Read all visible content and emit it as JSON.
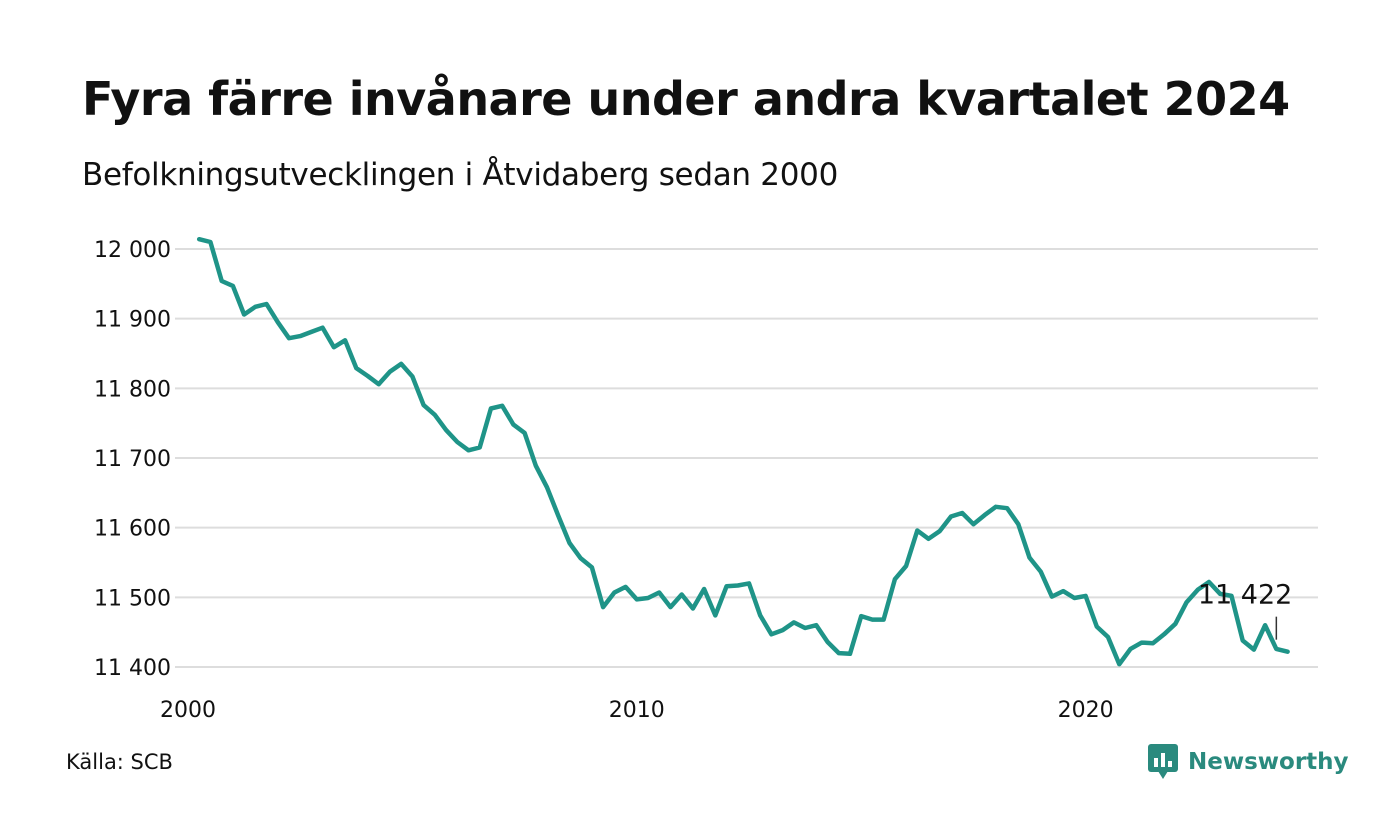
{
  "header": {
    "title": "Fyra färre invånare under andra kvartalet 2024",
    "subtitle": "Befolkningsutvecklingen i Åtvidaberg sedan 2000"
  },
  "footer": {
    "source": "Källa: SCB",
    "brand": "Newsworthy",
    "brand_icon": "bar-chart-speech-bubble-icon"
  },
  "colors": {
    "line": "#1f9488",
    "grid": "#dddddd",
    "text": "#111111",
    "brand": "#2a8a7e"
  },
  "chart_data": {
    "type": "line",
    "title": "Fyra färre invånare under andra kvartalet 2024",
    "subtitle": "Befolkningsutvecklingen i Åtvidaberg sedan 2000",
    "x_ticks": [
      2000,
      2010,
      2020
    ],
    "y_ticks": [
      11400,
      11500,
      11600,
      11700,
      11800,
      11900,
      12000
    ],
    "y_tick_labels": [
      "11 400",
      "11 500",
      "11 600",
      "11 700",
      "11 800",
      "11 900",
      "12 000"
    ],
    "xlim": [
      2000,
      2025
    ],
    "ylim": [
      11400,
      12000
    ],
    "grid": "horizontal",
    "annotation": {
      "text": "11 422",
      "x": 2024.25,
      "y": 11422
    },
    "series": [
      {
        "values": [
          {
            "x": 2000.25,
            "y": 12014
          },
          {
            "x": 2000.5,
            "y": 12010
          },
          {
            "x": 2000.75,
            "y": 11954
          },
          {
            "x": 2001.0,
            "y": 11947
          },
          {
            "x": 2001.25,
            "y": 11906
          },
          {
            "x": 2001.5,
            "y": 11917
          },
          {
            "x": 2001.75,
            "y": 11921
          },
          {
            "x": 2002.0,
            "y": 11895
          },
          {
            "x": 2002.25,
            "y": 11872
          },
          {
            "x": 2002.5,
            "y": 11875
          },
          {
            "x": 2002.75,
            "y": 11881
          },
          {
            "x": 2003.0,
            "y": 11887
          },
          {
            "x": 2003.25,
            "y": 11859
          },
          {
            "x": 2003.5,
            "y": 11869
          },
          {
            "x": 2003.75,
            "y": 11829
          },
          {
            "x": 2004.0,
            "y": 11818
          },
          {
            "x": 2004.25,
            "y": 11806
          },
          {
            "x": 2004.5,
            "y": 11824
          },
          {
            "x": 2004.75,
            "y": 11835
          },
          {
            "x": 2005.0,
            "y": 11817
          },
          {
            "x": 2005.25,
            "y": 11776
          },
          {
            "x": 2005.5,
            "y": 11762
          },
          {
            "x": 2005.75,
            "y": 11740
          },
          {
            "x": 2006.0,
            "y": 11723
          },
          {
            "x": 2006.25,
            "y": 11711
          },
          {
            "x": 2006.5,
            "y": 11715
          },
          {
            "x": 2006.75,
            "y": 11771
          },
          {
            "x": 2007.0,
            "y": 11775
          },
          {
            "x": 2007.25,
            "y": 11748
          },
          {
            "x": 2007.5,
            "y": 11736
          },
          {
            "x": 2007.75,
            "y": 11689
          },
          {
            "x": 2008.0,
            "y": 11658
          },
          {
            "x": 2008.25,
            "y": 11617
          },
          {
            "x": 2008.5,
            "y": 11578
          },
          {
            "x": 2008.75,
            "y": 11556
          },
          {
            "x": 2009.0,
            "y": 11543
          },
          {
            "x": 2009.25,
            "y": 11486
          },
          {
            "x": 2009.5,
            "y": 11507
          },
          {
            "x": 2009.75,
            "y": 11515
          },
          {
            "x": 2010.0,
            "y": 11497
          },
          {
            "x": 2010.25,
            "y": 11499
          },
          {
            "x": 2010.5,
            "y": 11507
          },
          {
            "x": 2010.75,
            "y": 11486
          },
          {
            "x": 2011.0,
            "y": 11504
          },
          {
            "x": 2011.25,
            "y": 11484
          },
          {
            "x": 2011.5,
            "y": 11512
          },
          {
            "x": 2011.75,
            "y": 11474
          },
          {
            "x": 2012.0,
            "y": 11516
          },
          {
            "x": 2012.25,
            "y": 11517
          },
          {
            "x": 2012.5,
            "y": 11520
          },
          {
            "x": 2012.75,
            "y": 11474
          },
          {
            "x": 2013.0,
            "y": 11447
          },
          {
            "x": 2013.25,
            "y": 11453
          },
          {
            "x": 2013.5,
            "y": 11464
          },
          {
            "x": 2013.75,
            "y": 11456
          },
          {
            "x": 2014.0,
            "y": 11460
          },
          {
            "x": 2014.25,
            "y": 11436
          },
          {
            "x": 2014.5,
            "y": 11420
          },
          {
            "x": 2014.75,
            "y": 11419
          },
          {
            "x": 2015.0,
            "y": 11473
          },
          {
            "x": 2015.25,
            "y": 11468
          },
          {
            "x": 2015.5,
            "y": 11468
          },
          {
            "x": 2015.75,
            "y": 11526
          },
          {
            "x": 2016.0,
            "y": 11545
          },
          {
            "x": 2016.25,
            "y": 11596
          },
          {
            "x": 2016.5,
            "y": 11584
          },
          {
            "x": 2016.75,
            "y": 11595
          },
          {
            "x": 2017.0,
            "y": 11616
          },
          {
            "x": 2017.25,
            "y": 11621
          },
          {
            "x": 2017.5,
            "y": 11605
          },
          {
            "x": 2017.75,
            "y": 11618
          },
          {
            "x": 2018.0,
            "y": 11630
          },
          {
            "x": 2018.25,
            "y": 11628
          },
          {
            "x": 2018.5,
            "y": 11605
          },
          {
            "x": 2018.75,
            "y": 11557
          },
          {
            "x": 2019.0,
            "y": 11537
          },
          {
            "x": 2019.25,
            "y": 11501
          },
          {
            "x": 2019.5,
            "y": 11509
          },
          {
            "x": 2019.75,
            "y": 11499
          },
          {
            "x": 2020.0,
            "y": 11502
          },
          {
            "x": 2020.25,
            "y": 11458
          },
          {
            "x": 2020.5,
            "y": 11443
          },
          {
            "x": 2020.75,
            "y": 11404
          },
          {
            "x": 2021.0,
            "y": 11426
          },
          {
            "x": 2021.25,
            "y": 11435
          },
          {
            "x": 2021.5,
            "y": 11434
          },
          {
            "x": 2021.75,
            "y": 11447
          },
          {
            "x": 2022.0,
            "y": 11462
          },
          {
            "x": 2022.25,
            "y": 11493
          },
          {
            "x": 2022.5,
            "y": 11511
          },
          {
            "x": 2022.75,
            "y": 11522
          },
          {
            "x": 2023.0,
            "y": 11505
          },
          {
            "x": 2023.25,
            "y": 11502
          },
          {
            "x": 2023.5,
            "y": 11438
          },
          {
            "x": 2023.75,
            "y": 11425
          },
          {
            "x": 2024.0,
            "y": 11460
          },
          {
            "x": 2024.25,
            "y": 11426
          },
          {
            "x": 2024.5,
            "y": 11422
          }
        ]
      }
    ]
  }
}
